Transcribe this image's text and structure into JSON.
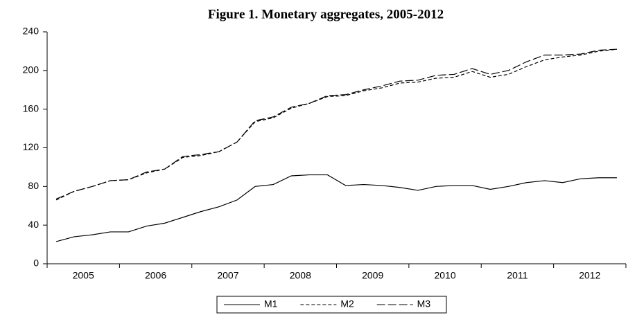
{
  "chart_data": {
    "type": "line",
    "title": "Figure 1. Monetary aggregates, 2005-2012",
    "categories": [
      null,
      "2005",
      null,
      null,
      null,
      "2006",
      null,
      null,
      null,
      "2007",
      null,
      null,
      null,
      "2008",
      null,
      null,
      null,
      "2009",
      null,
      null,
      null,
      "2010",
      null,
      null,
      null,
      "2011",
      null,
      null,
      null,
      "2012",
      null,
      null
    ],
    "series": [
      {
        "name": "M1",
        "color": "#000000",
        "dash": "solid",
        "values": [
          23,
          28,
          30,
          33,
          33,
          39,
          42,
          48,
          54,
          59,
          66,
          80,
          82,
          91,
          92,
          92,
          81,
          82,
          81,
          79,
          76,
          80,
          81,
          81,
          77,
          80,
          84,
          86,
          84,
          88,
          89,
          89
        ]
      },
      {
        "name": "M2",
        "color": "#000000",
        "dash": "short",
        "values": [
          66,
          75,
          80,
          86,
          87,
          94,
          98,
          110,
          112,
          116,
          126,
          147,
          151,
          161,
          166,
          173,
          174,
          179,
          182,
          187,
          188,
          192,
          193,
          199,
          193,
          196,
          204,
          211,
          214,
          216,
          220,
          222
        ]
      },
      {
        "name": "M3",
        "color": "#000000",
        "dash": "long",
        "values": [
          67,
          75,
          80,
          86,
          87,
          95,
          98,
          111,
          113,
          116,
          126,
          148,
          152,
          162,
          166,
          174,
          175,
          180,
          184,
          189,
          190,
          195,
          196,
          202,
          196,
          200,
          209,
          216,
          216,
          217,
          221,
          222
        ]
      }
    ],
    "ylim": [
      0,
      240
    ],
    "yticks": [
      0,
      40,
      80,
      120,
      160,
      200,
      240
    ],
    "legend": "bottom"
  }
}
